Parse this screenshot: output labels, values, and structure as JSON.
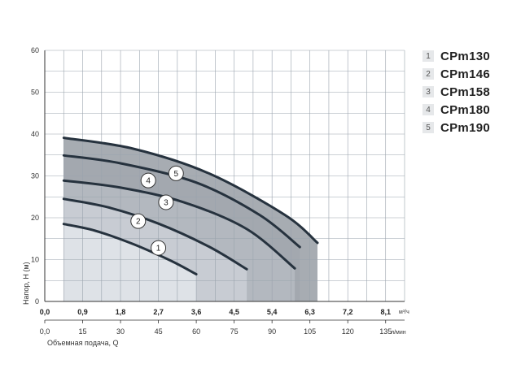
{
  "chart_data": {
    "type": "line",
    "ylabel": "Напор, Н (м)",
    "xlabel": "Объемная подача, Q",
    "x_unit_top": "м³/ч",
    "x_unit_bottom": "л/мин",
    "ylim": [
      0,
      60
    ],
    "xlim": [
      0,
      142.5
    ],
    "y_ticks": [
      "0",
      "10",
      "20",
      "30",
      "40",
      "50",
      "60"
    ],
    "x_ticks_m3h": [
      "0,0",
      "0,9",
      "1,8",
      "2,7",
      "3,6",
      "4,5",
      "5,4",
      "6,3",
      "7,2",
      "8,1"
    ],
    "x_ticks_lmin": [
      "0,0",
      "15",
      "30",
      "45",
      "60",
      "75",
      "90",
      "105",
      "120",
      "135"
    ],
    "grid": true,
    "legend_position": "right",
    "series": [
      {
        "name": "CPm130",
        "marker": "1",
        "x": [
          7.5,
          20,
          35,
          50,
          60
        ],
        "y": [
          18.5,
          16.9,
          13.7,
          9.7,
          6.5
        ]
      },
      {
        "name": "CPm146",
        "marker": "2",
        "x": [
          7.5,
          25,
          45,
          65,
          80
        ],
        "y": [
          24.5,
          22.5,
          18.6,
          13.1,
          7.7
        ]
      },
      {
        "name": "CPm158",
        "marker": "3",
        "x": [
          7.5,
          30,
          55,
          80,
          99
        ],
        "y": [
          28.9,
          27.2,
          23.7,
          17.3,
          7.9
        ]
      },
      {
        "name": "CPm180",
        "marker": "4",
        "x": [
          7.5,
          30,
          60,
          85,
          101
        ],
        "y": [
          34.9,
          33.0,
          28.4,
          20.7,
          13.0
        ]
      },
      {
        "name": "CPm190",
        "marker": "5",
        "x": [
          7.5,
          35,
          65,
          95,
          108
        ],
        "y": [
          39.1,
          36.5,
          30.6,
          20.7,
          14.0
        ]
      }
    ],
    "legend": [
      {
        "number": "1",
        "label": "CPm130"
      },
      {
        "number": "2",
        "label": "CPm146"
      },
      {
        "number": "3",
        "label": "CPm158"
      },
      {
        "number": "4",
        "label": "CPm180"
      },
      {
        "number": "5",
        "label": "CPm190"
      }
    ]
  }
}
